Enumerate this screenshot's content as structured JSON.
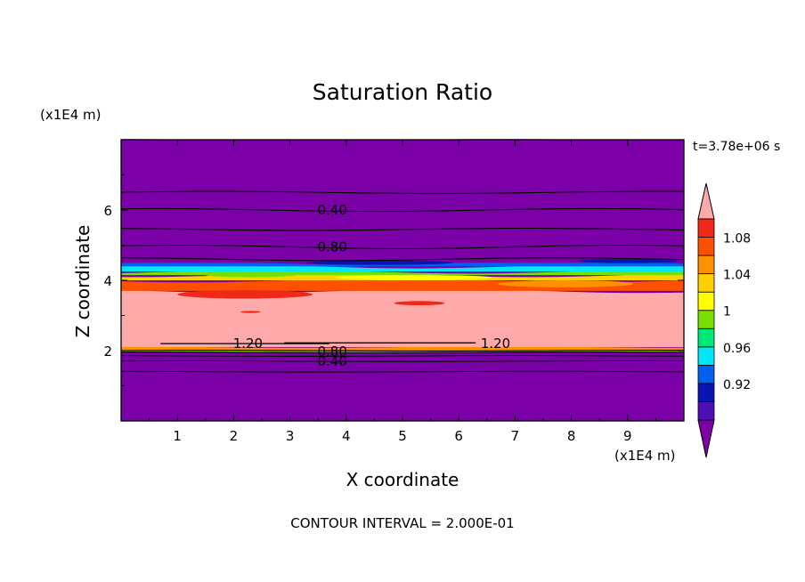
{
  "chart_data": {
    "type": "heatmap",
    "title": "Saturation Ratio",
    "xlabel": "X coordinate",
    "ylabel": "Z coordinate",
    "x_unit": "(x1E4 m)",
    "y_unit": "(x1E4 m)",
    "xlim": [
      0,
      10
    ],
    "ylim": [
      0,
      8
    ],
    "x_ticks": [
      "1",
      "2",
      "3",
      "4",
      "5",
      "6",
      "7",
      "8",
      "9"
    ],
    "y_ticks": [
      "2",
      "4",
      "6"
    ],
    "time_label": "t=3.78e+06 s",
    "footer": "CONTOUR INTERVAL = 2.000E-01",
    "colorbar": {
      "labels": [
        "0.92",
        "0.96",
        "1",
        "1.04",
        "1.08"
      ],
      "colors": [
        "#7b00a8",
        "#4d10b4",
        "#0a14b0",
        "#0060f0",
        "#00e8f8",
        "#00e878",
        "#78e000",
        "#ffff00",
        "#ffd000",
        "#ff9000",
        "#ff5000",
        "#f02818",
        "#ffaaaa"
      ]
    },
    "bands": [
      {
        "z_bottom": 0,
        "z_top": 1.95,
        "value": 0.5,
        "color": "#7b00a8"
      },
      {
        "z_bottom": 1.95,
        "z_top": 2.0,
        "value": 0.98,
        "color": "#78e000"
      },
      {
        "z_bottom": 2.0,
        "z_top": 2.1,
        "value": 1.06,
        "color": "#ff9000"
      },
      {
        "z_bottom": 2.1,
        "z_top": 3.7,
        "value": 1.1,
        "color": "#ffaaaa"
      },
      {
        "z_bottom": 3.7,
        "z_top": 4.0,
        "value": 1.08,
        "color": "#ff5000"
      },
      {
        "z_bottom": 4.0,
        "z_top": 4.15,
        "value": 1.04,
        "color": "#ffd000"
      },
      {
        "z_bottom": 4.15,
        "z_top": 4.25,
        "value": 1.0,
        "color": "#78e000"
      },
      {
        "z_bottom": 4.25,
        "z_top": 4.4,
        "value": 0.97,
        "color": "#00e8f8"
      },
      {
        "z_bottom": 4.4,
        "z_top": 4.5,
        "value": 0.95,
        "color": "#0060f0"
      },
      {
        "z_bottom": 4.5,
        "z_top": 8.0,
        "value": 0.5,
        "color": "#7b00a8"
      }
    ],
    "contours": [
      {
        "value": 0.4,
        "label": "0.40",
        "z": 6.0,
        "label_x": 3.5
      },
      {
        "value": 0.8,
        "label": "0.80",
        "z": 4.95,
        "label_x": 3.5
      },
      {
        "value": 1.2,
        "label": "1.20",
        "z": 2.2,
        "label_x": 2.0
      },
      {
        "value": 1.2,
        "label": "1.20",
        "z": 2.2,
        "label_x": 6.4
      },
      {
        "value": 0.8,
        "label": "0.80",
        "z": 1.98,
        "label_x": 3.5
      },
      {
        "value": 0.4,
        "label": "0.40",
        "z": 1.7,
        "label_x": 3.5
      }
    ]
  }
}
